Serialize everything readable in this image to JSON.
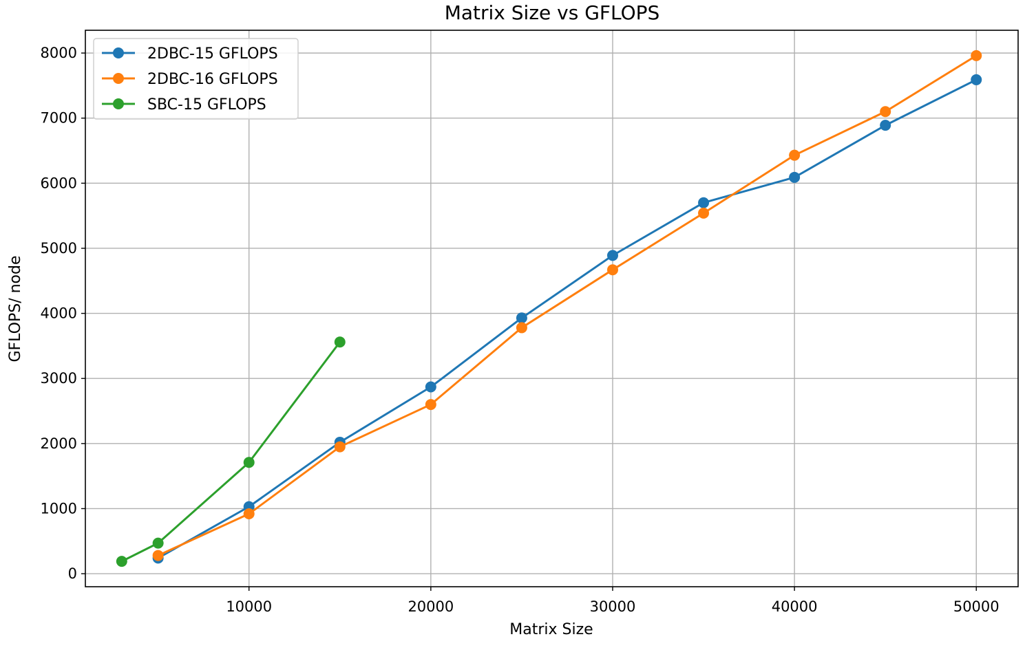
{
  "chart_data": {
    "type": "line",
    "title": "Matrix Size vs GFLOPS",
    "xlabel": "Matrix Size",
    "ylabel": "GFLOPS/ node",
    "xlim": [
      1000,
      52300
    ],
    "ylim": [
      -200,
      8350
    ],
    "xticks": [
      10000,
      20000,
      30000,
      40000,
      50000
    ],
    "yticks": [
      0,
      1000,
      2000,
      3000,
      4000,
      5000,
      6000,
      7000,
      8000
    ],
    "grid": true,
    "legend_position": "top-left",
    "series": [
      {
        "name": "2DBC-15 GFLOPS",
        "color": "#1f77b4",
        "x": [
          5000,
          10000,
          15000,
          20000,
          25000,
          30000,
          35000,
          40000,
          45000,
          50000
        ],
        "y": [
          240,
          1030,
          2020,
          2870,
          3930,
          4890,
          5700,
          6090,
          6890,
          7590
        ]
      },
      {
        "name": "2DBC-16 GFLOPS",
        "color": "#ff7f0e",
        "x": [
          5000,
          10000,
          15000,
          20000,
          25000,
          30000,
          35000,
          40000,
          45000,
          50000
        ],
        "y": [
          280,
          920,
          1950,
          2600,
          3780,
          4670,
          5540,
          6430,
          7100,
          7960
        ]
      },
      {
        "name": "SBC-15 GFLOPS",
        "color": "#2ca02c",
        "x": [
          3000,
          5000,
          10000,
          15000
        ],
        "y": [
          190,
          470,
          1710,
          3560
        ]
      }
    ]
  }
}
